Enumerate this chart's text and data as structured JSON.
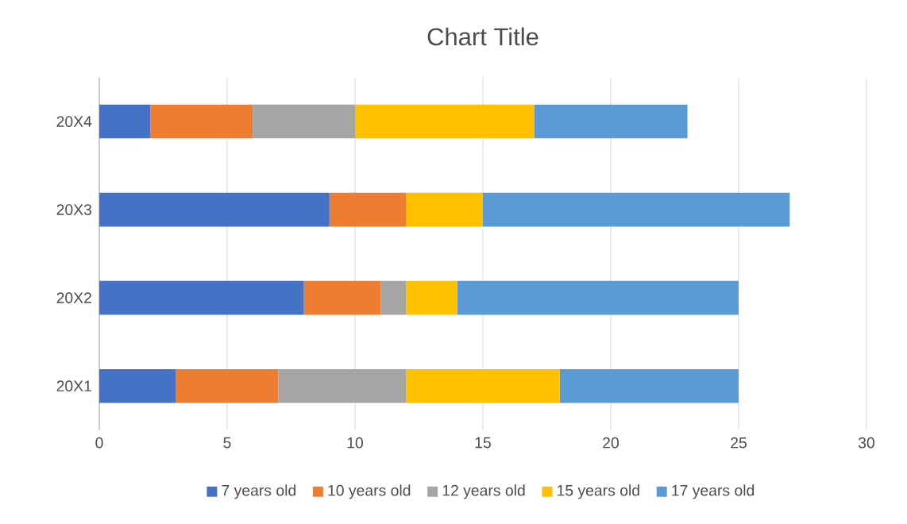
{
  "chart_data": {
    "type": "bar",
    "orientation": "horizontal",
    "stacked": true,
    "title": "Chart Title",
    "categories": [
      "20X4",
      "20X3",
      "20X2",
      "20X1"
    ],
    "series": [
      {
        "name": "7 years old",
        "color": "#4472c4",
        "values": [
          2,
          9,
          8,
          3
        ]
      },
      {
        "name": "10 years old",
        "color": "#ed7d31",
        "values": [
          4,
          3,
          3,
          4
        ]
      },
      {
        "name": "12 years old",
        "color": "#a5a5a5",
        "values": [
          4,
          0,
          1,
          5
        ]
      },
      {
        "name": "15 years old",
        "color": "#ffc000",
        "values": [
          7,
          3,
          2,
          6
        ]
      },
      {
        "name": "17 years old",
        "color": "#5b9bd5",
        "values": [
          6,
          12,
          11,
          7
        ]
      }
    ],
    "xlim": [
      0,
      30
    ],
    "xticks": [
      0,
      5,
      10,
      15,
      20,
      25,
      30
    ],
    "grid": "x",
    "legend": "bottom"
  }
}
